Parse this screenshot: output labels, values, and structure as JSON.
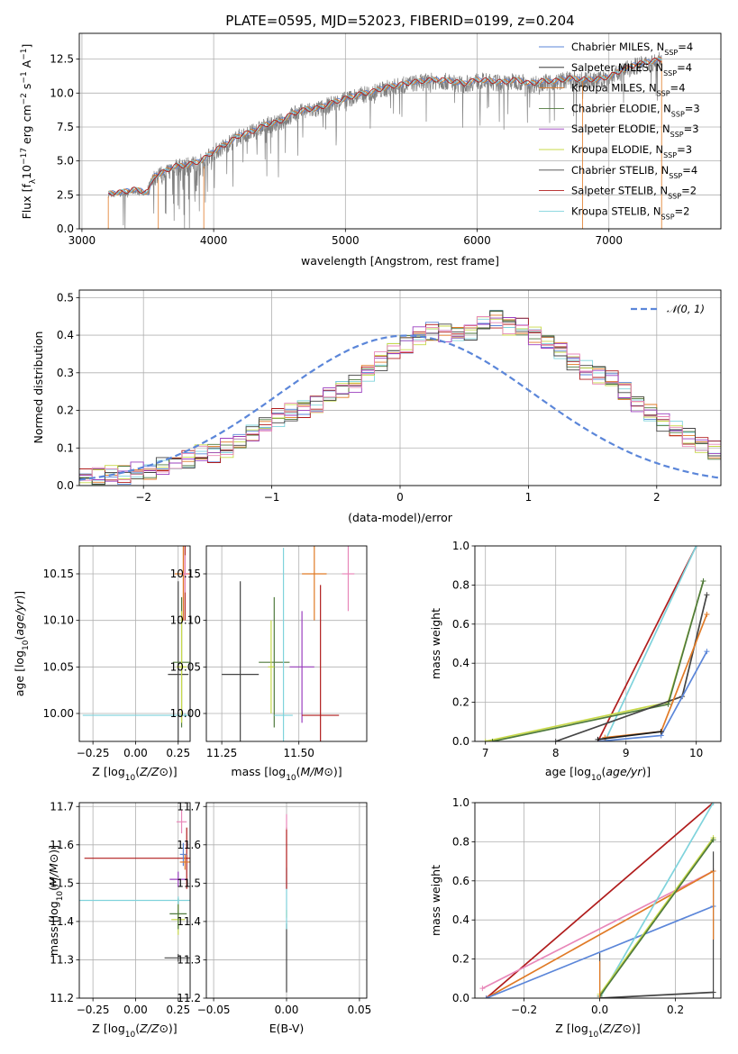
{
  "figure": {
    "title": "PLATE=0595, MJD=52023, FIBERID=0199, z=0.204"
  },
  "colors": {
    "Chabrier MILES": "#5b86d9",
    "Salpeter MILES": "#1a1a1a",
    "Kroupa MILES": "#e07a26",
    "Chabrier ELODIE": "#4f7a3d",
    "Salpeter ELODIE": "#9b3fbf",
    "Kroupa ELODIE": "#c8d94a",
    "Chabrier STELIB": "#444444",
    "Salpeter STELIB": "#b01c1c",
    "Kroupa STELIB": "#7fd3dc",
    "pink": "#e887b9",
    "normal": "#5b86d9"
  },
  "chart_data": [
    {
      "id": "spectrum",
      "type": "line",
      "xlabel": "wavelength [Angstrom, rest frame]",
      "ylabel": "Flux [f",
      "ylabel_parts": {
        "pre": "Flux [f",
        "sub1": "λ",
        "mid": "10",
        "sup1": "−17",
        "post1": " erg cm",
        "sup2": "−2",
        "post2": " s",
        "sup3": "−1",
        "post3": " A",
        "sup4": "−1",
        "post4": "]"
      },
      "xlim": [
        2980,
        7850
      ],
      "ylim": [
        0,
        14.4
      ],
      "xticks": [
        "3000",
        "4000",
        "5000",
        "6000",
        "7000"
      ],
      "yticks": [
        "0.0",
        "2.5",
        "5.0",
        "7.5",
        "10.0",
        "12.5"
      ],
      "legend_loc": "upper right",
      "legend": [
        {
          "name": "Chabrier MILES",
          "nssp": "4"
        },
        {
          "name": "Salpeter MILES",
          "nssp": "4"
        },
        {
          "name": "Kroupa MILES",
          "nssp": "4"
        },
        {
          "name": "Chabrier ELODIE",
          "nssp": "3"
        },
        {
          "name": "Salpeter ELODIE",
          "nssp": "3"
        },
        {
          "name": "Kroupa ELODIE",
          "nssp": "3"
        },
        {
          "name": "Chabrier STELIB",
          "nssp": "4"
        },
        {
          "name": "Salpeter STELIB",
          "nssp": "2"
        },
        {
          "name": "Kroupa STELIB",
          "nssp": "2"
        }
      ],
      "legend_suffix_pre": ", N",
      "legend_suffix_sub": "SSP",
      "legend_suffix_post": "=",
      "data_envelope": {
        "x": [
          3200,
          3300,
          3400,
          3500,
          3550,
          3600,
          3700,
          3800,
          3900,
          4000,
          4100,
          4200,
          4300,
          4400,
          4500,
          4600,
          4700,
          4800,
          4900,
          5000,
          5100,
          5200,
          5300,
          5400,
          5500,
          5600,
          5700,
          5800,
          5900,
          6000,
          6100,
          6200,
          6300,
          6400,
          6500,
          6600,
          6700,
          6800,
          6900,
          7000,
          7100,
          7200,
          7300,
          7400
        ],
        "y": [
          2.5,
          2.6,
          2.8,
          2.6,
          3.8,
          4.0,
          4.5,
          4.6,
          4.9,
          5.6,
          6.2,
          6.8,
          7.1,
          7.6,
          7.8,
          8.4,
          8.7,
          8.8,
          9.2,
          9.5,
          9.8,
          10.0,
          10.3,
          10.5,
          10.7,
          10.8,
          10.9,
          10.8,
          10.6,
          10.9,
          10.8,
          10.7,
          10.9,
          10.6,
          10.8,
          10.8,
          11.0,
          10.9,
          10.9,
          11.1,
          11.6,
          12.0,
          12.2,
          12.4
        ]
      },
      "model_cut": [
        3200,
        7400
      ]
    },
    {
      "id": "residuals",
      "type": "step",
      "xlabel": "(data-model)/error",
      "ylabel": "Normed distribution",
      "xlim": [
        -2.5,
        2.5
      ],
      "ylim": [
        0,
        0.52
      ],
      "xticks": [
        "−2",
        "−1",
        "0",
        "1",
        "2"
      ],
      "yticks": [
        "0.0",
        "0.1",
        "0.2",
        "0.3",
        "0.4",
        "0.5"
      ],
      "legend": [
        {
          "name": "𝒩(0, 1)"
        }
      ],
      "bin_width": 0.1,
      "bin_start": -2.5,
      "hist_envelope": [
        0.02,
        0.02,
        0.03,
        0.03,
        0.035,
        0.04,
        0.05,
        0.06,
        0.065,
        0.08,
        0.09,
        0.1,
        0.12,
        0.14,
        0.16,
        0.18,
        0.19,
        0.21,
        0.22,
        0.24,
        0.26,
        0.27,
        0.3,
        0.33,
        0.36,
        0.38,
        0.4,
        0.41,
        0.41,
        0.4,
        0.41,
        0.43,
        0.45,
        0.43,
        0.42,
        0.4,
        0.38,
        0.36,
        0.33,
        0.31,
        0.3,
        0.28,
        0.25,
        0.22,
        0.19,
        0.17,
        0.15,
        0.13,
        0.11,
        0.09,
        0.075,
        0.065,
        0.05,
        0.04,
        0.03,
        0.02
      ],
      "normal": {
        "mu": 0.05,
        "sigma": 1.0
      }
    },
    {
      "id": "age_vs_Z",
      "type": "errorbar",
      "xlabel": "Z [log10(Z/Z⊙)]",
      "ylabel": "age  [log10(age/yr)]",
      "xlim": [
        -0.33,
        0.32
      ],
      "ylim": [
        9.97,
        10.18
      ],
      "xticks": [
        "−0.25",
        "0.00",
        "0.25"
      ],
      "yticks": [
        "10.00",
        "10.05",
        "10.10",
        "10.15"
      ],
      "points": [
        {
          "s": "Kroupa STELIB",
          "x": 0.29,
          "y": 9.998,
          "xerr": 0.6,
          "yerr": 0.002
        },
        {
          "s": "Chabrier STELIB",
          "x": 0.25,
          "y": 10.042,
          "xerr": 0.06,
          "yerr": 0.1
        },
        {
          "s": "Chabrier ELODIE",
          "x": 0.27,
          "y": 10.055,
          "xerr": 0.05,
          "yerr": 0.07
        },
        {
          "s": "Kroupa ELODIE",
          "x": 0.27,
          "y": 10.05,
          "xerr": 0.03,
          "yerr": 0.06
        },
        {
          "s": "Kroupa MILES",
          "x": 0.28,
          "y": 10.15,
          "xerr": 0.05,
          "yerr": 0.05
        },
        {
          "s": "Salpeter STELIB",
          "x": 0.29,
          "y": 10.15,
          "xerr": 0.02,
          "yerr": 0.05
        },
        {
          "s": "pink",
          "x": 0.29,
          "y": 10.15,
          "xerr": 0.02,
          "yerr": 0.02
        }
      ]
    },
    {
      "id": "age_vs_mass",
      "type": "errorbar",
      "xlabel": "mass [log10(M/M⊙)]",
      "ylabel": "",
      "xlim": [
        11.2,
        11.72
      ],
      "ylim": [
        9.97,
        10.18
      ],
      "xticks": [
        "11.25",
        "11.50"
      ],
      "yticks": [
        "10.00",
        "10.05",
        "10.10",
        "10.15"
      ],
      "points": [
        {
          "s": "Chabrier STELIB",
          "x": 11.31,
          "y": 10.042,
          "xerr": 0.06,
          "yerr": 0.1
        },
        {
          "s": "Chabrier ELODIE",
          "x": 11.42,
          "y": 10.055,
          "xerr": 0.05,
          "yerr": 0.07
        },
        {
          "s": "Kroupa ELODIE",
          "x": 11.41,
          "y": 10.05,
          "xerr": 0.01,
          "yerr": 0.05
        },
        {
          "s": "Kroupa STELIB",
          "x": 11.45,
          "y": 9.998,
          "xerr": 0.03,
          "yerr": 0.18
        },
        {
          "s": "Salpeter ELODIE",
          "x": 11.51,
          "y": 10.05,
          "xerr": 0.04,
          "yerr": 0.06
        },
        {
          "s": "Salpeter STELIB",
          "x": 11.57,
          "y": 9.998,
          "xerr": 0.06,
          "yerr": 0.14
        },
        {
          "s": "Kroupa MILES",
          "x": 11.55,
          "y": 10.15,
          "xerr": 0.04,
          "yerr": 0.05
        },
        {
          "s": "pink",
          "x": 11.66,
          "y": 10.15,
          "xerr": 0.02,
          "yerr": 0.04
        }
      ]
    },
    {
      "id": "weight_vs_age",
      "type": "line",
      "xlabel": "age  [log10(age/yr)]",
      "ylabel": "mass weight",
      "xlim": [
        6.85,
        10.35
      ],
      "ylim": [
        0,
        1
      ],
      "xticks": [
        "7",
        "8",
        "9",
        "10"
      ],
      "yticks": [
        "0.0",
        "0.2",
        "0.4",
        "0.6",
        "0.8",
        "1.0"
      ],
      "series": [
        {
          "s": "Salpeter STELIB",
          "x": [
            8.6,
            10.0
          ],
          "y": [
            0.0,
            1.0
          ]
        },
        {
          "s": "Kroupa STELIB",
          "x": [
            8.7,
            10.0
          ],
          "y": [
            0.0,
            1.0
          ]
        },
        {
          "s": "Kroupa ELODIE",
          "x": [
            7.0,
            9.6,
            10.1
          ],
          "y": [
            0.0,
            0.2,
            0.82
          ]
        },
        {
          "s": "Chabrier ELODIE",
          "x": [
            7.1,
            9.6,
            10.1
          ],
          "y": [
            0.0,
            0.19,
            0.82
          ]
        },
        {
          "s": "Chabrier STELIB",
          "x": [
            8.0,
            9.8,
            10.15
          ],
          "y": [
            0.0,
            0.23,
            0.75
          ]
        },
        {
          "s": "Chabrier MILES",
          "x": [
            8.6,
            9.5,
            10.15
          ],
          "y": [
            0.0,
            0.03,
            0.46
          ]
        },
        {
          "s": "Kroupa MILES",
          "x": [
            8.7,
            9.5,
            10.15
          ],
          "y": [
            0.02,
            0.05,
            0.65
          ]
        },
        {
          "s": "Salpeter MILES",
          "x": [
            8.6,
            9.5
          ],
          "y": [
            0.01,
            0.05
          ]
        }
      ]
    },
    {
      "id": "mass_vs_Z",
      "type": "errorbar",
      "xlabel": "Z [log10(Z/Z⊙)]",
      "ylabel": "mass [log10(M/M⊙)]",
      "xlim": [
        -0.33,
        0.32
      ],
      "ylim": [
        11.2,
        11.71
      ],
      "xticks": [
        "−0.25",
        "0.00",
        "0.25"
      ],
      "yticks": [
        "11.2",
        "11.3",
        "11.4",
        "11.5",
        "11.6",
        "11.7"
      ],
      "points": [
        {
          "s": "Chabrier STELIB",
          "x": 0.25,
          "y": 11.305,
          "xerr": 0.08,
          "yerr": 0.01
        },
        {
          "s": "Kroupa ELODIE",
          "x": 0.25,
          "y": 11.405,
          "xerr": 0.04,
          "yerr": 0.04
        },
        {
          "s": "Chabrier ELODIE",
          "x": 0.25,
          "y": 11.42,
          "xerr": 0.05,
          "yerr": 0.04
        },
        {
          "s": "Kroupa STELIB",
          "x": 0.25,
          "y": 11.455,
          "xerr": 0.6,
          "yerr": 0.01
        },
        {
          "s": "Salpeter ELODIE",
          "x": 0.25,
          "y": 11.51,
          "xerr": 0.05,
          "yerr": 0.02
        },
        {
          "s": "Salpeter STELIB",
          "x": 0.3,
          "y": 11.565,
          "xerr": 0.6,
          "yerr": 0.08
        },
        {
          "s": "Chabrier MILES",
          "x": 0.28,
          "y": 11.575,
          "xerr": 0.02,
          "yerr": 0.03
        },
        {
          "s": "pink",
          "x": 0.27,
          "y": 11.66,
          "xerr": 0.03,
          "yerr": 0.03
        },
        {
          "s": "Kroupa MILES",
          "x": 0.29,
          "y": 11.555,
          "xerr": 0.03,
          "yerr": 0.02
        }
      ]
    },
    {
      "id": "mass_vs_ebv",
      "type": "errorbar",
      "xlabel": "E(B-V)",
      "ylabel": "",
      "xlim": [
        -0.055,
        0.055
      ],
      "ylim": [
        11.2,
        11.71
      ],
      "xticks": [
        "−0.05",
        "0.00",
        "0.05"
      ],
      "yticks": [
        "11.2",
        "11.3",
        "11.4",
        "11.5",
        "11.6",
        "11.7"
      ],
      "points": [
        {
          "s": "Chabrier STELIB",
          "x": 0.0,
          "y": 11.305,
          "xerr": 0.0,
          "yerr": 0.09
        },
        {
          "s": "Kroupa ELODIE",
          "x": 0.0,
          "y": 11.42,
          "xerr": 0.0,
          "yerr": 0.01
        },
        {
          "s": "Kroupa STELIB",
          "x": 0.0,
          "y": 11.46,
          "xerr": 0.0,
          "yerr": 0.08
        },
        {
          "s": "Salpeter STELIB",
          "x": 0.0,
          "y": 11.565,
          "xerr": 0.0,
          "yerr": 0.08
        },
        {
          "s": "pink",
          "x": 0.0,
          "y": 11.66,
          "xerr": 0.0,
          "yerr": 0.02
        }
      ]
    },
    {
      "id": "weight_vs_Z",
      "type": "line",
      "xlabel": "Z [log10(Z/Z⊙)]",
      "ylabel": "mass weight",
      "xlim": [
        -0.33,
        0.32
      ],
      "ylim": [
        0,
        1
      ],
      "xticks": [
        "−0.2",
        "0.0",
        "0.2"
      ],
      "yticks": [
        "0.0",
        "0.2",
        "0.4",
        "0.6",
        "0.8",
        "1.0"
      ],
      "series": [
        {
          "s": "Salpeter STELIB",
          "x": [
            -0.3,
            0.3
          ],
          "y": [
            0.0,
            1.0
          ]
        },
        {
          "s": "pink",
          "x": [
            -0.31,
            0.3
          ],
          "y": [
            0.05,
            0.65
          ]
        },
        {
          "s": "Kroupa MILES",
          "x": [
            -0.3,
            0.3
          ],
          "y": [
            0.0,
            0.65
          ]
        },
        {
          "s": "Chabrier MILES",
          "x": [
            -0.3,
            0.3
          ],
          "y": [
            0.0,
            0.47
          ]
        },
        {
          "s": "Kroupa STELIB",
          "x": [
            0.0,
            0.3
          ],
          "y": [
            0.0,
            1.0
          ]
        },
        {
          "s": "Kroupa ELODIE",
          "x": [
            0.0,
            0.3
          ],
          "y": [
            0.02,
            0.82
          ]
        },
        {
          "s": "Chabrier ELODIE",
          "x": [
            0.0,
            0.3
          ],
          "y": [
            0.01,
            0.81
          ]
        },
        {
          "s": "Chabrier STELIB",
          "x": [
            0.0,
            0.3
          ],
          "y": [
            0.0,
            0.03
          ]
        }
      ],
      "vbars": [
        {
          "s": "Chabrier STELIB",
          "x": 0.0,
          "y0": 0.0,
          "y1": 0.23
        },
        {
          "s": "Kroupa MILES",
          "x": 0.0,
          "y0": 0.0,
          "y1": 0.19
        },
        {
          "s": "Chabrier STELIB",
          "x": 0.3,
          "y0": 0.0,
          "y1": 0.75
        },
        {
          "s": "Kroupa MILES",
          "x": 0.3,
          "y0": 0.3,
          "y1": 0.65
        }
      ]
    }
  ]
}
